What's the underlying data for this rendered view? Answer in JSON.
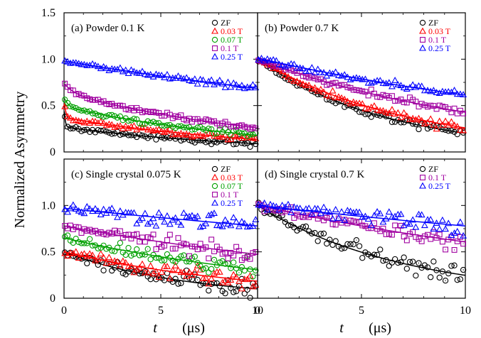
{
  "figure": {
    "ylabel": "Normalized Asymmetry",
    "xlabel_t": "t",
    "xlabel_unit": "(μs)"
  },
  "chart_data": [
    {
      "type": "scatter",
      "title": "(a) Powder 0.1 K",
      "xlim": [
        0,
        10
      ],
      "ylim": [
        0,
        1.5
      ],
      "xticks": [
        0,
        5,
        10
      ],
      "yticks": [
        0,
        0.5,
        1,
        1.5
      ],
      "ytick_labels": [
        "0",
        "0.5",
        "1.0",
        "1.5"
      ],
      "xtick_labels": [],
      "legend_position": "top-right",
      "series": [
        {
          "name": "ZF",
          "marker": "circle",
          "color": "#000000",
          "a0": 0.55,
          "fast": 0.25,
          "lambda_fast": 20,
          "a_slow": 0.27,
          "lambda_slow": 0.11,
          "noise": 0.012
        },
        {
          "name": "0.03 T",
          "marker": "triangle",
          "color": "#ff0000",
          "a0": 0.57,
          "fast": 0.2,
          "lambda_fast": 12,
          "a_slow": 0.37,
          "lambda_slow": 0.1,
          "noise": 0.012
        },
        {
          "name": "0.07 T",
          "marker": "circle",
          "color": "#00a000",
          "a0": 0.59,
          "fast": 0.1,
          "lambda_fast": 5,
          "a_slow": 0.49,
          "lambda_slow": 0.1,
          "noise": 0.012
        },
        {
          "name": "0.1 T",
          "marker": "square",
          "color": "#a000a0",
          "a0": 0.74,
          "fast": 0.1,
          "lambda_fast": 2,
          "a_slow": 0.64,
          "lambda_slow": 0.09,
          "noise": 0.012
        },
        {
          "name": "0.25 T",
          "marker": "triangle",
          "color": "#0000ff",
          "a0": 0.98,
          "fast": 0,
          "lambda_fast": 1,
          "a_slow": 0.98,
          "lambda_slow": 0.036,
          "noise": 0.012
        }
      ]
    },
    {
      "type": "scatter",
      "title": "(b) Powder 0.7 K",
      "xlim": [
        0,
        10
      ],
      "ylim": [
        0,
        1.5
      ],
      "xticks": [
        0,
        5,
        10
      ],
      "yticks": [
        0,
        0.5,
        1,
        1.5
      ],
      "ytick_labels": [],
      "xtick_labels": [],
      "legend_position": "top-right",
      "series": [
        {
          "name": "ZF",
          "marker": "circle",
          "color": "#000000",
          "a0": 1.0,
          "fast": 0,
          "lambda_fast": 1,
          "a_slow": 1.0,
          "lambda_slow": 0.16,
          "noise": 0.015
        },
        {
          "name": "0.03 T",
          "marker": "triangle",
          "color": "#ff0000",
          "a0": 1.0,
          "fast": 0,
          "lambda_fast": 1,
          "a_slow": 1.0,
          "lambda_slow": 0.135,
          "noise": 0.015
        },
        {
          "name": "0.1 T",
          "marker": "square",
          "color": "#a000a0",
          "a0": 1.0,
          "fast": 0,
          "lambda_fast": 1,
          "a_slow": 1.0,
          "lambda_slow": 0.085,
          "noise": 0.015
        },
        {
          "name": "0.25 T",
          "marker": "triangle",
          "color": "#0000ff",
          "a0": 1.01,
          "fast": 0,
          "lambda_fast": 1,
          "a_slow": 1.01,
          "lambda_slow": 0.05,
          "noise": 0.015
        }
      ]
    },
    {
      "type": "scatter",
      "title": "(c) Single crystal 0.075 K",
      "xlim": [
        0,
        10
      ],
      "ylim": [
        0,
        1.5
      ],
      "xticks": [
        0,
        5,
        10
      ],
      "yticks": [
        0,
        0.5,
        1,
        1.5
      ],
      "ytick_labels": [
        "0",
        "0.5",
        "1.0",
        ""
      ],
      "xtick_labels": [
        "0",
        "5",
        "10"
      ],
      "legend_position": "top-right",
      "series": [
        {
          "name": "ZF",
          "marker": "circle",
          "color": "#000000",
          "a0": 0.5,
          "fast": 0,
          "lambda_fast": 1,
          "a_slow": 0.5,
          "lambda_slow": 0.16,
          "noise": 0.03
        },
        {
          "name": "0.03 T",
          "marker": "triangle",
          "color": "#ff0000",
          "a0": 0.5,
          "fast": 0,
          "lambda_fast": 1,
          "a_slow": 0.5,
          "lambda_slow": 0.1,
          "noise": 0.03
        },
        {
          "name": "0.07 T",
          "marker": "circle",
          "color": "#00a000",
          "a0": 0.65,
          "fast": 0,
          "lambda_fast": 1,
          "a_slow": 0.65,
          "lambda_slow": 0.075,
          "noise": 0.03
        },
        {
          "name": "0.1 T",
          "marker": "square",
          "color": "#a000a0",
          "a0": 0.78,
          "fast": 0,
          "lambda_fast": 1,
          "a_slow": 0.78,
          "lambda_slow": 0.05,
          "noise": 0.03
        },
        {
          "name": "0.25 T",
          "marker": "triangle",
          "color": "#0000ff",
          "a0": 0.97,
          "fast": 0,
          "lambda_fast": 1,
          "a_slow": 0.97,
          "lambda_slow": 0.022,
          "noise": 0.035
        }
      ]
    },
    {
      "type": "scatter",
      "title": "(d) Single crystal 0.7 K",
      "xlim": [
        0,
        10
      ],
      "ylim": [
        0,
        1.5
      ],
      "xticks": [
        0,
        5,
        10
      ],
      "yticks": [
        0,
        0.5,
        1,
        1.5
      ],
      "ytick_labels": [],
      "xtick_labels": [
        "0",
        "5",
        "10"
      ],
      "legend_position": "top-right",
      "series": [
        {
          "name": "ZF",
          "marker": "circle",
          "color": "#000000",
          "a0": 1.0,
          "fast": 0,
          "lambda_fast": 1,
          "a_slow": 1.0,
          "lambda_slow": 0.14,
          "noise": 0.035
        },
        {
          "name": "0.1 T",
          "marker": "square",
          "color": "#a000a0",
          "a0": 1.0,
          "fast": 0,
          "lambda_fast": 1,
          "a_slow": 1.0,
          "lambda_slow": 0.05,
          "noise": 0.03
        },
        {
          "name": "0.25 T",
          "marker": "triangle",
          "color": "#0000ff",
          "a0": 1.0,
          "fast": 0,
          "lambda_fast": 1,
          "a_slow": 1.0,
          "lambda_slow": 0.025,
          "noise": 0.035
        }
      ]
    }
  ]
}
